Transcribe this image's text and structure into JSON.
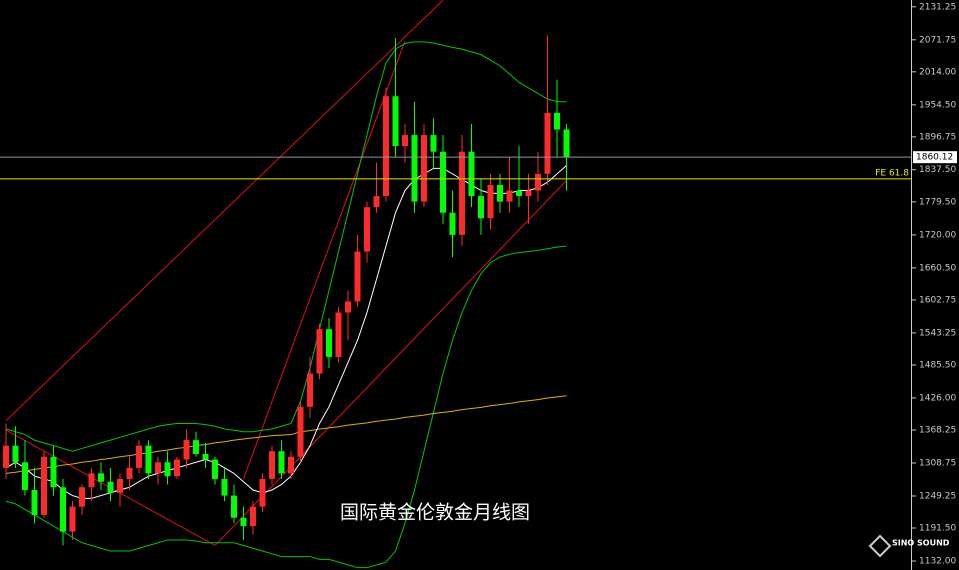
{
  "chart_data": {
    "type": "candlestick",
    "title": "国际黄金伦敦金月线图",
    "logo": "SINO SOUND",
    "up_color": "#ff2a2a",
    "down_color": "#00ff00",
    "open": [
      1300,
      1340,
      1310,
      1260,
      1215,
      1320,
      1265,
      1185,
      1230,
      1265,
      1290,
      1275,
      1255,
      1280,
      1300,
      1340,
      1290,
      1310,
      1285,
      1315,
      1350,
      1325,
      1315,
      1280,
      1250,
      1210,
      1195,
      1230,
      1280,
      1330,
      1290,
      1320,
      1410,
      1470,
      1550,
      1500,
      1580,
      1600,
      1690,
      1770,
      1790,
      1970,
      1880,
      1900,
      1780,
      1900,
      1870,
      1760,
      1720,
      1870,
      1790,
      1750,
      1810,
      1780,
      1800,
      1790,
      1800,
      1830,
      1940,
      1910
    ],
    "high": [
      1380,
      1375,
      1350,
      1300,
      1330,
      1340,
      1280,
      1240,
      1270,
      1300,
      1310,
      1300,
      1290,
      1320,
      1350,
      1350,
      1320,
      1330,
      1320,
      1370,
      1365,
      1345,
      1320,
      1300,
      1270,
      1230,
      1240,
      1290,
      1340,
      1350,
      1330,
      1420,
      1500,
      1560,
      1570,
      1590,
      1620,
      1720,
      1780,
      1850,
      1985,
      2075,
      1920,
      1960,
      1920,
      1930,
      1900,
      1800,
      1900,
      1920,
      1820,
      1830,
      1830,
      1860,
      1880,
      1830,
      1870,
      2080,
      2000,
      1920
    ],
    "low": [
      1280,
      1300,
      1250,
      1200,
      1210,
      1250,
      1160,
      1170,
      1215,
      1240,
      1260,
      1240,
      1230,
      1260,
      1290,
      1280,
      1270,
      1270,
      1280,
      1300,
      1320,
      1300,
      1270,
      1240,
      1200,
      1170,
      1180,
      1220,
      1270,
      1280,
      1280,
      1310,
      1390,
      1460,
      1480,
      1490,
      1530,
      1590,
      1670,
      1760,
      1780,
      1860,
      1850,
      1760,
      1770,
      1840,
      1740,
      1680,
      1700,
      1770,
      1720,
      1730,
      1760,
      1760,
      1770,
      1740,
      1780,
      1810,
      1860,
      1800
    ],
    "close": [
      1340,
      1310,
      1260,
      1215,
      1320,
      1265,
      1185,
      1230,
      1265,
      1290,
      1275,
      1255,
      1280,
      1300,
      1340,
      1290,
      1310,
      1285,
      1315,
      1350,
      1325,
      1315,
      1280,
      1250,
      1210,
      1195,
      1230,
      1280,
      1330,
      1290,
      1320,
      1410,
      1470,
      1550,
      1500,
      1580,
      1600,
      1690,
      1770,
      1790,
      1970,
      1880,
      1900,
      1780,
      1900,
      1870,
      1760,
      1720,
      1870,
      1790,
      1750,
      1810,
      1780,
      1800,
      1790,
      1800,
      1830,
      1940,
      1910,
      1860.12
    ],
    "overlays": [
      {
        "color": "#00c800",
        "values": [
          1370,
          1365,
          1360,
          1350,
          1345,
          1340,
          1335,
          1330,
          1335,
          1340,
          1345,
          1350,
          1355,
          1360,
          1365,
          1370,
          1375,
          1378,
          1380,
          1380,
          1380,
          1378,
          1375,
          1370,
          1368,
          1365,
          1365,
          1368,
          1370,
          1375,
          1380,
          1420,
          1480,
          1550,
          1620,
          1690,
          1760,
          1830,
          1900,
          1970,
          2030,
          2055,
          2065,
          2068,
          2068,
          2066,
          2062,
          2058,
          2055,
          2050,
          2045,
          2035,
          2025,
          2010,
          1995,
          1985,
          1975,
          1965,
          1960,
          1960
        ]
      },
      {
        "color": "#00c800",
        "values": [
          1240,
          1235,
          1225,
          1215,
          1205,
          1195,
          1185,
          1175,
          1165,
          1160,
          1155,
          1150,
          1150,
          1150,
          1155,
          1160,
          1165,
          1170,
          1170,
          1170,
          1168,
          1165,
          1165,
          1165,
          1165,
          1160,
          1155,
          1150,
          1145,
          1140,
          1140,
          1140,
          1140,
          1135,
          1135,
          1130,
          1125,
          1120,
          1120,
          1125,
          1130,
          1150,
          1200,
          1260,
          1330,
          1400,
          1470,
          1530,
          1580,
          1620,
          1650,
          1670,
          1680,
          1685,
          1688,
          1690,
          1692,
          1695,
          1698,
          1700
        ]
      },
      {
        "color": "#e0b000",
        "values": [
          1290,
          1292,
          1295,
          1297,
          1300,
          1302,
          1305,
          1307,
          1310,
          1312,
          1315,
          1317,
          1320,
          1322,
          1325,
          1327,
          1330,
          1332,
          1335,
          1337,
          1340,
          1342,
          1345,
          1347,
          1350,
          1352,
          1354,
          1356,
          1358,
          1359,
          1360,
          1365,
          1367,
          1370,
          1372,
          1374,
          1377,
          1379,
          1381,
          1384,
          1386,
          1388,
          1391,
          1393,
          1395,
          1398,
          1400,
          1402,
          1405,
          1407,
          1409,
          1412,
          1414,
          1416,
          1419,
          1421,
          1423,
          1426,
          1428,
          1430
        ]
      },
      {
        "color": "#ffffff",
        "values": [
          1300,
          1310,
          1300,
          1285,
          1280,
          1275,
          1260,
          1250,
          1245,
          1245,
          1250,
          1255,
          1260,
          1265,
          1275,
          1285,
          1290,
          1295,
          1300,
          1305,
          1310,
          1315,
          1310,
          1300,
          1290,
          1275,
          1260,
          1255,
          1260,
          1270,
          1285,
          1310,
          1340,
          1380,
          1410,
          1450,
          1490,
          1530,
          1580,
          1640,
          1700,
          1760,
          1800,
          1820,
          1830,
          1840,
          1840,
          1830,
          1820,
          1810,
          1800,
          1795,
          1795,
          1795,
          1800,
          1800,
          1805,
          1815,
          1830,
          1845
        ]
      }
    ],
    "trend_lines": [
      {
        "color": "#e01010",
        "x": [
          0,
          46
        ],
        "y": [
          1385,
          2143
        ]
      },
      {
        "color": "#e01010",
        "x": [
          22,
          59
        ],
        "y": [
          1160,
          1818
        ]
      },
      {
        "color": "#e01010",
        "x": [
          25,
          42
        ],
        "y": [
          1280,
          2070
        ]
      },
      {
        "color": "#e01010",
        "x": [
          0,
          22
        ],
        "y": [
          1368,
          1160
        ]
      }
    ],
    "last_price": 1860.12,
    "fe_level": {
      "value": 1821,
      "label": "FE 61.8"
    },
    "ylim": [
      1115.8,
      2143.5
    ],
    "yticks": [
      2131.25,
      2071.75,
      {
        "value": 2014,
        "label": "2014.00"
      },
      {
        "value": 1954.5,
        "label": "1954.50"
      },
      1896.75,
      {
        "value": 1837.5,
        "label": "1837.50"
      },
      {
        "value": 1779.5,
        "label": "1779.50"
      },
      {
        "value": 1720,
        "label": "1720.00"
      },
      {
        "value": 1660.5,
        "label": "1660.50"
      },
      1602.75,
      1543.25,
      {
        "value": 1485.5,
        "label": "1485.50"
      },
      {
        "value": 1426,
        "label": "1426.00"
      },
      1368.25,
      1308.75,
      1249.25,
      {
        "value": 1191.5,
        "label": "1191.50"
      },
      {
        "value": 1132,
        "label": "1132.00"
      }
    ]
  }
}
